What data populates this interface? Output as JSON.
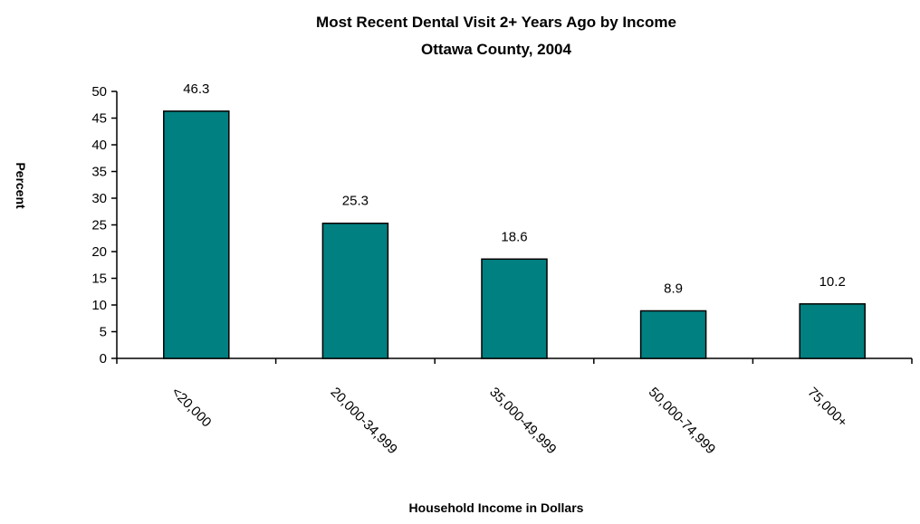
{
  "chart_data": {
    "type": "bar",
    "title": "Most Recent Dental Visit 2+ Years Ago by Income",
    "subtitle": "Ottawa County, 2004",
    "xlabel": "Household Income in Dollars",
    "ylabel": "Percent",
    "categories": [
      "<20,000",
      "20,000-34,999",
      "35,000-49,999",
      "50,000-74,999",
      "75,000+"
    ],
    "values": [
      46.3,
      25.3,
      18.6,
      8.9,
      10.2
    ],
    "data_labels": [
      "46.3",
      "25.3",
      "18.6",
      "8.9",
      "10.2"
    ],
    "ylim": [
      0,
      50
    ],
    "yticks": [
      "0",
      "5",
      "10",
      "15",
      "20",
      "25",
      "30",
      "35",
      "40",
      "45",
      "50"
    ],
    "grid": false,
    "legend": "none",
    "bar_color": "#008080",
    "bar_border_color": "#000000"
  }
}
